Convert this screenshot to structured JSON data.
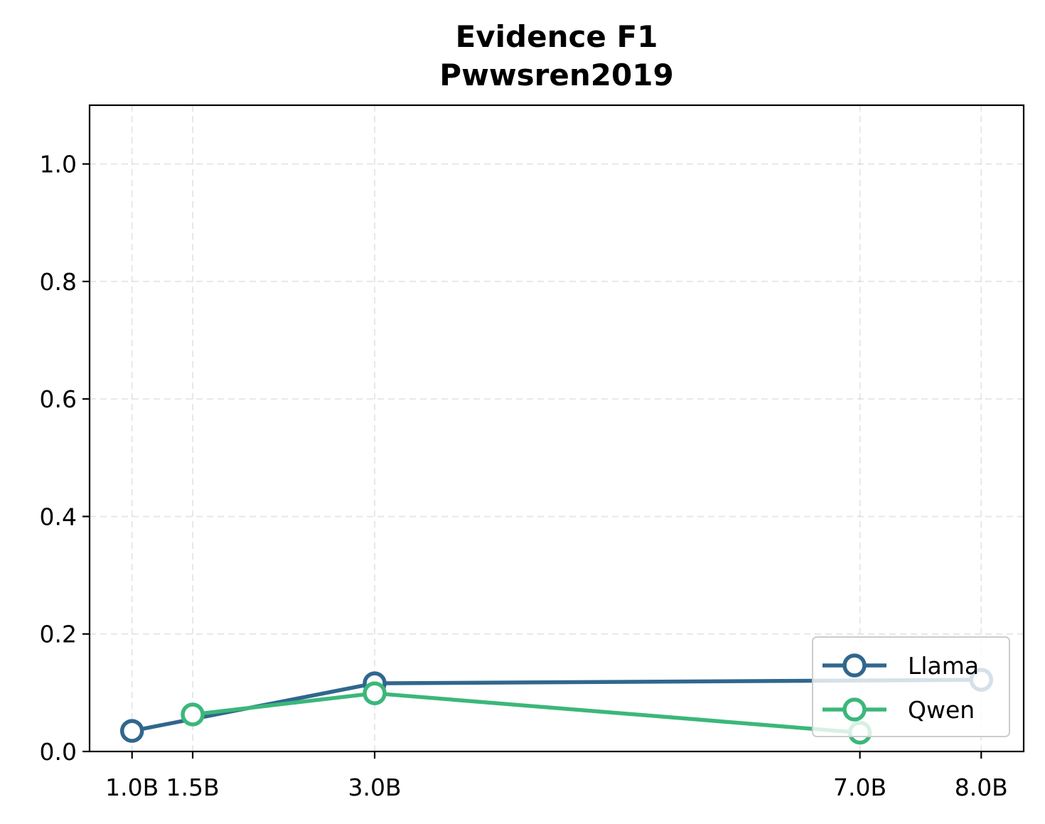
{
  "chart_data": {
    "type": "line",
    "title": [
      "Evidence F1",
      "Pwwsren2019"
    ],
    "xlabel": "",
    "ylabel": "",
    "x_ticks": [
      {
        "value": 1.0,
        "label": "1.0B"
      },
      {
        "value": 1.5,
        "label": "1.5B"
      },
      {
        "value": 3.0,
        "label": "3.0B"
      },
      {
        "value": 7.0,
        "label": "7.0B"
      },
      {
        "value": 8.0,
        "label": "8.0B"
      }
    ],
    "y_ticks": [
      {
        "value": 0.0,
        "label": "0.0"
      },
      {
        "value": 0.2,
        "label": "0.2"
      },
      {
        "value": 0.4,
        "label": "0.4"
      },
      {
        "value": 0.6,
        "label": "0.6"
      },
      {
        "value": 0.8,
        "label": "0.8"
      },
      {
        "value": 1.0,
        "label": "1.0"
      }
    ],
    "xlim": [
      0.65,
      8.35
    ],
    "ylim": [
      0.0,
      1.1
    ],
    "grid": true,
    "legend_position": "lower-right",
    "series": [
      {
        "name": "Llama",
        "color": "#30678d",
        "points": [
          {
            "x": 1.0,
            "y": 0.035
          },
          {
            "x": 3.0,
            "y": 0.116
          },
          {
            "x": 8.0,
            "y": 0.122
          }
        ]
      },
      {
        "name": "Qwen",
        "color": "#3bb77a",
        "points": [
          {
            "x": 1.5,
            "y": 0.063
          },
          {
            "x": 3.0,
            "y": 0.099
          },
          {
            "x": 7.0,
            "y": 0.032
          }
        ]
      }
    ]
  }
}
